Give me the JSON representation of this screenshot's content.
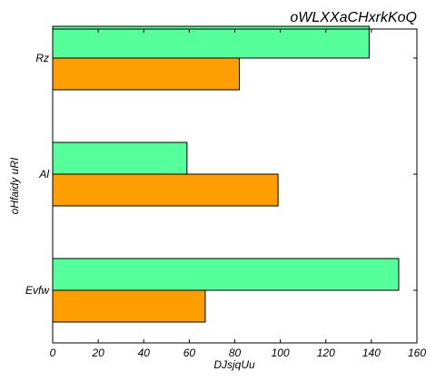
{
  "chart_data": {
    "type": "bar",
    "orientation": "horizontal",
    "title": "oWLXXaCHxrkKoQ",
    "xlabel": "DJsjqUu",
    "ylabel": "oHfaidy uRI",
    "categories": [
      "Evfw",
      "Al",
      "Rz"
    ],
    "xlim": [
      0,
      160
    ],
    "xticks": [
      "0",
      "20",
      "40",
      "60",
      "80",
      "100",
      "120",
      "140",
      "160"
    ],
    "series": [
      {
        "color": "#ff9e00",
        "values": [
          67,
          99,
          82
        ]
      },
      {
        "color": "#55ff99",
        "values": [
          152,
          59,
          139
        ]
      }
    ],
    "grid": false,
    "legend": "none"
  }
}
